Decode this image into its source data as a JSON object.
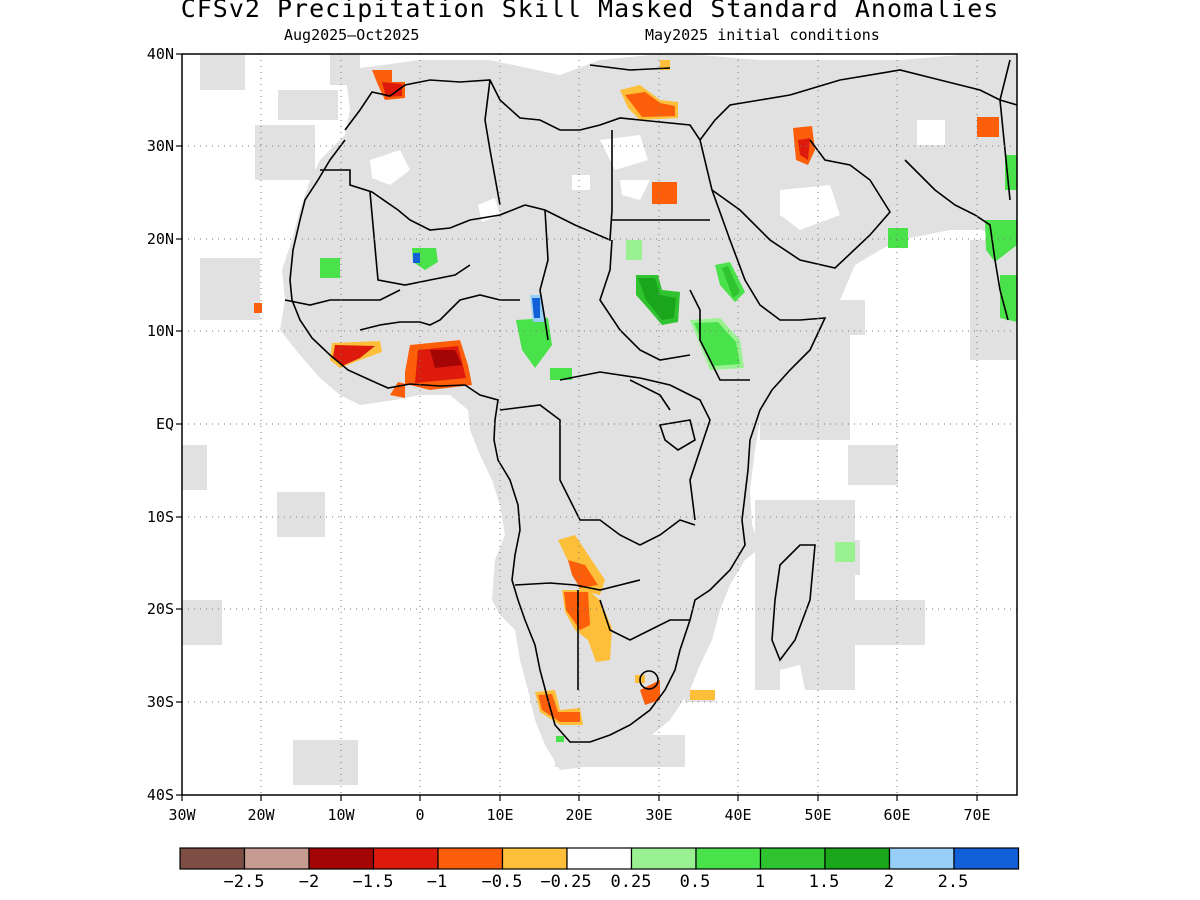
{
  "title": "CFSv2 Precipitation Skill Masked Standard Anomalies",
  "subtitle_left": "Aug2025–Oct2025",
  "subtitle_right": "May2025 initial conditions",
  "map": {
    "lon_range": [
      -30,
      75
    ],
    "lat_range": [
      -40,
      40
    ],
    "lat_ticks": [
      "40N",
      "30N",
      "20N",
      "10N",
      "EQ",
      "10S",
      "20S",
      "30S",
      "40S"
    ],
    "lon_ticks": [
      "30W",
      "20W",
      "10W",
      "0",
      "10E",
      "20E",
      "30E",
      "40E",
      "50E",
      "60E",
      "70E"
    ],
    "grid": "dotted",
    "colors": {
      "no_skill_mask": "#e1e1e1",
      "coastline": "#000000"
    },
    "anomaly_regions": [
      {
        "region": "Gulf of Guinea coast",
        "class": "-1.5 to -1",
        "color": "#de1a0c"
      },
      {
        "region": "Ivory Coast / Liberia coast",
        "class": "-1 to -0.5",
        "color": "#fc5e0a"
      },
      {
        "region": "Northern Morocco / Algeria coast",
        "class": "-1 to -0.5",
        "color": "#fc5e0a"
      },
      {
        "region": "Libya coast",
        "class": "-1 to -0.5",
        "color": "#fc5e0a"
      },
      {
        "region": "Western Egypt",
        "class": "-1 to -0.5",
        "color": "#fc5e0a"
      },
      {
        "region": "Iraq / Iran border",
        "class": "-1 to -0.5",
        "color": "#fc5e0a"
      },
      {
        "region": "Angola / Namibia / Zambia",
        "class": "-0.5 to -0.25",
        "color": "#fdbf3a"
      },
      {
        "region": "Western Cape",
        "class": "-1 to -0.5",
        "color": "#fc5e0a"
      },
      {
        "region": "Sudan",
        "class": "1 to 1.5",
        "color": "#2fc32f"
      },
      {
        "region": "Ethiopia",
        "class": "0.5 to 1",
        "color": "#4ae24a"
      },
      {
        "region": "Lake Chad",
        "class": "0.5 to 1",
        "color": "#4ae24a"
      },
      {
        "region": "Northern Mali",
        "class": "0.5 to 1",
        "color": "#4ae24a"
      },
      {
        "region": "Western India coast",
        "class": "0.5 to 1",
        "color": "#4ae24a"
      }
    ]
  },
  "colorbar": {
    "colors": [
      "#7c4e44",
      "#c89b92",
      "#a30505",
      "#de1a0c",
      "#fc5e0a",
      "#fdbf3a",
      "#ffffff",
      "#99f191",
      "#4ae24a",
      "#2fc32f",
      "#1aa61a",
      "#98cff8",
      "#1260d8"
    ],
    "labels": [
      "−2.5",
      "−2",
      "−1.5",
      "−1",
      "−0.5",
      "−0.25",
      "0.25",
      "0.5",
      "1",
      "1.5",
      "2",
      "2.5"
    ]
  }
}
